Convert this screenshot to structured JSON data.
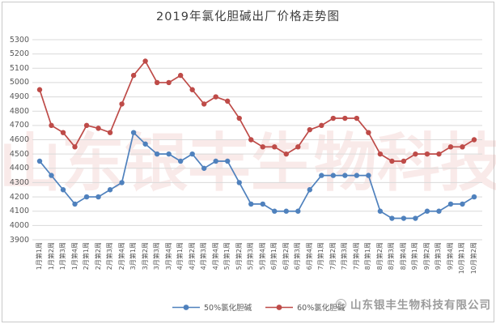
{
  "chart_data": {
    "type": "line",
    "title": "2019年氯化胆碱出厂价格走势图",
    "categories": [
      "1月第1周",
      "1月第2周",
      "1月第3周",
      "1月第4周",
      "2月第1周",
      "2月第2周",
      "2月第3周",
      "2月第4周",
      "3月第1周",
      "3月第2周",
      "3月第3周",
      "3月第4周",
      "4月第1周",
      "4月第2周",
      "4月第3周",
      "4月第4周",
      "5月第1周",
      "5月第2周",
      "5月第3周",
      "5月第4周",
      "6月第1周",
      "6月第2周",
      "6月第3周",
      "6月第4周",
      "7月第1周",
      "7月第2周",
      "7月第3周",
      "7月第4周",
      "8月第1周",
      "8月第2周",
      "8月第3周",
      "8月第4周",
      "9月第1周",
      "9月第2周",
      "9月第3周",
      "9月第4周",
      "10月第1周",
      "10月第2周"
    ],
    "series": [
      {
        "name": "50%氯化胆碱",
        "color": "#4f81bd",
        "values": [
          4450,
          4350,
          4250,
          4150,
          4200,
          4200,
          4250,
          4300,
          4650,
          4570,
          4500,
          4500,
          4450,
          4500,
          4400,
          4450,
          4450,
          4300,
          4150,
          4150,
          4100,
          4100,
          4100,
          4250,
          4350,
          4350,
          4350,
          4350,
          4350,
          4100,
          4050,
          4050,
          4050,
          4100,
          4100,
          4150,
          4150,
          4200
        ]
      },
      {
        "name": "60%氯化胆碱",
        "color": "#be4b48",
        "values": [
          4950,
          4700,
          4650,
          4550,
          4700,
          4680,
          4650,
          4850,
          5050,
          5150,
          5000,
          5000,
          5050,
          4950,
          4850,
          4900,
          4870,
          4750,
          4600,
          4550,
          4550,
          4500,
          4550,
          4670,
          4700,
          4750,
          4750,
          4750,
          4650,
          4500,
          4450,
          4450,
          4500,
          4500,
          4500,
          4550,
          4550,
          4600
        ]
      }
    ],
    "ylim": [
      3900,
      5300
    ],
    "y_tick_step": 100,
    "xlabel": "",
    "ylabel": "",
    "grid": true,
    "legend_position": "bottom"
  },
  "watermark": {
    "text": "山东银丰生物科技"
  },
  "footer": {
    "company_name": "山东银丰生物科技有限公司"
  },
  "colors": {
    "gridline": "#d9d9d9",
    "axis_text": "#595959",
    "title_text": "#3d3d3d",
    "series_blue": "#4f81bd",
    "series_red": "#be4b48",
    "watermark_pink": "#dd807d",
    "frame_border": "#c9c9c9",
    "company_text": "#9b9b9b"
  }
}
